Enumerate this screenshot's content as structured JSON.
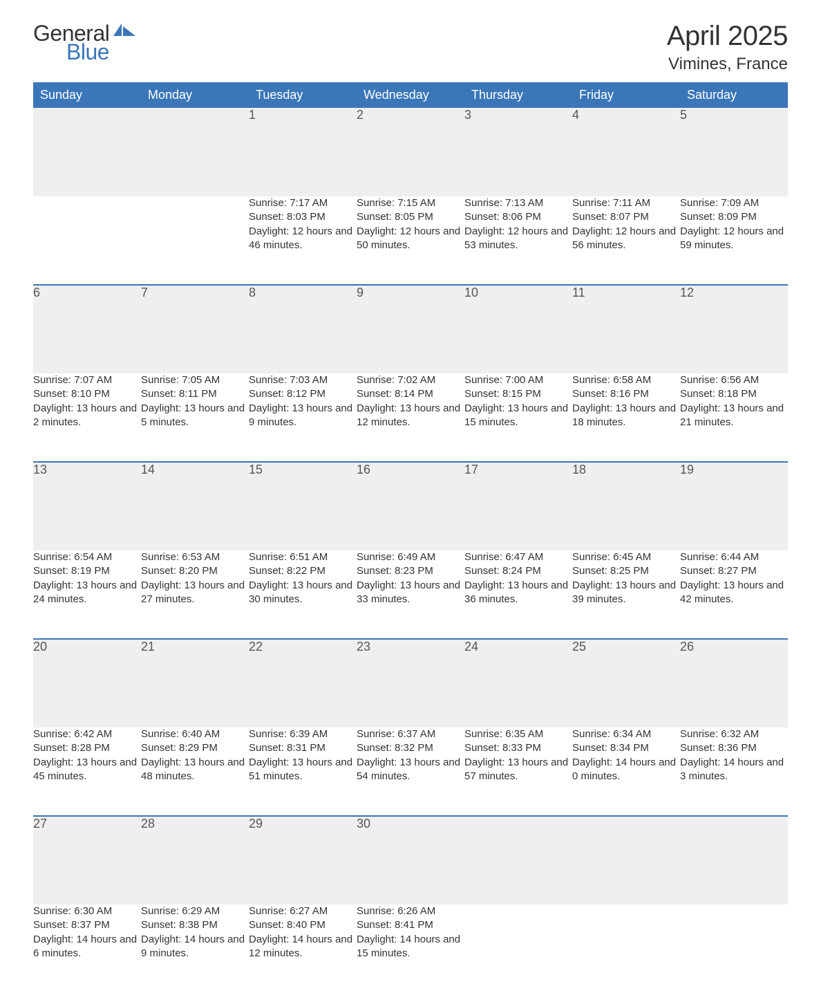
{
  "logo": {
    "general": "General",
    "blue": "Blue",
    "icon_color": "#3a76b8"
  },
  "title": "April 2025",
  "location": "Vimines, France",
  "colors": {
    "header_bg": "#3a76b8",
    "header_text": "#ffffff",
    "daynum_bg": "#efefef",
    "border_top": "#3a76b8",
    "body_text": "#333333",
    "daynum_text": "#555555",
    "page_bg": "#ffffff"
  },
  "typography": {
    "title_fontsize": 40,
    "location_fontsize": 24,
    "header_fontsize": 18,
    "daynum_fontsize": 18,
    "content_fontsize": 15,
    "logo_fontsize": 32
  },
  "weekdays": [
    "Sunday",
    "Monday",
    "Tuesday",
    "Wednesday",
    "Thursday",
    "Friday",
    "Saturday"
  ],
  "weeks": [
    [
      null,
      null,
      {
        "day": "1",
        "sunrise": "Sunrise: 7:17 AM",
        "sunset": "Sunset: 8:03 PM",
        "daylight": "Daylight: 12 hours and 46 minutes."
      },
      {
        "day": "2",
        "sunrise": "Sunrise: 7:15 AM",
        "sunset": "Sunset: 8:05 PM",
        "daylight": "Daylight: 12 hours and 50 minutes."
      },
      {
        "day": "3",
        "sunrise": "Sunrise: 7:13 AM",
        "sunset": "Sunset: 8:06 PM",
        "daylight": "Daylight: 12 hours and 53 minutes."
      },
      {
        "day": "4",
        "sunrise": "Sunrise: 7:11 AM",
        "sunset": "Sunset: 8:07 PM",
        "daylight": "Daylight: 12 hours and 56 minutes."
      },
      {
        "day": "5",
        "sunrise": "Sunrise: 7:09 AM",
        "sunset": "Sunset: 8:09 PM",
        "daylight": "Daylight: 12 hours and 59 minutes."
      }
    ],
    [
      {
        "day": "6",
        "sunrise": "Sunrise: 7:07 AM",
        "sunset": "Sunset: 8:10 PM",
        "daylight": "Daylight: 13 hours and 2 minutes."
      },
      {
        "day": "7",
        "sunrise": "Sunrise: 7:05 AM",
        "sunset": "Sunset: 8:11 PM",
        "daylight": "Daylight: 13 hours and 5 minutes."
      },
      {
        "day": "8",
        "sunrise": "Sunrise: 7:03 AM",
        "sunset": "Sunset: 8:12 PM",
        "daylight": "Daylight: 13 hours and 9 minutes."
      },
      {
        "day": "9",
        "sunrise": "Sunrise: 7:02 AM",
        "sunset": "Sunset: 8:14 PM",
        "daylight": "Daylight: 13 hours and 12 minutes."
      },
      {
        "day": "10",
        "sunrise": "Sunrise: 7:00 AM",
        "sunset": "Sunset: 8:15 PM",
        "daylight": "Daylight: 13 hours and 15 minutes."
      },
      {
        "day": "11",
        "sunrise": "Sunrise: 6:58 AM",
        "sunset": "Sunset: 8:16 PM",
        "daylight": "Daylight: 13 hours and 18 minutes."
      },
      {
        "day": "12",
        "sunrise": "Sunrise: 6:56 AM",
        "sunset": "Sunset: 8:18 PM",
        "daylight": "Daylight: 13 hours and 21 minutes."
      }
    ],
    [
      {
        "day": "13",
        "sunrise": "Sunrise: 6:54 AM",
        "sunset": "Sunset: 8:19 PM",
        "daylight": "Daylight: 13 hours and 24 minutes."
      },
      {
        "day": "14",
        "sunrise": "Sunrise: 6:53 AM",
        "sunset": "Sunset: 8:20 PM",
        "daylight": "Daylight: 13 hours and 27 minutes."
      },
      {
        "day": "15",
        "sunrise": "Sunrise: 6:51 AM",
        "sunset": "Sunset: 8:22 PM",
        "daylight": "Daylight: 13 hours and 30 minutes."
      },
      {
        "day": "16",
        "sunrise": "Sunrise: 6:49 AM",
        "sunset": "Sunset: 8:23 PM",
        "daylight": "Daylight: 13 hours and 33 minutes."
      },
      {
        "day": "17",
        "sunrise": "Sunrise: 6:47 AM",
        "sunset": "Sunset: 8:24 PM",
        "daylight": "Daylight: 13 hours and 36 minutes."
      },
      {
        "day": "18",
        "sunrise": "Sunrise: 6:45 AM",
        "sunset": "Sunset: 8:25 PM",
        "daylight": "Daylight: 13 hours and 39 minutes."
      },
      {
        "day": "19",
        "sunrise": "Sunrise: 6:44 AM",
        "sunset": "Sunset: 8:27 PM",
        "daylight": "Daylight: 13 hours and 42 minutes."
      }
    ],
    [
      {
        "day": "20",
        "sunrise": "Sunrise: 6:42 AM",
        "sunset": "Sunset: 8:28 PM",
        "daylight": "Daylight: 13 hours and 45 minutes."
      },
      {
        "day": "21",
        "sunrise": "Sunrise: 6:40 AM",
        "sunset": "Sunset: 8:29 PM",
        "daylight": "Daylight: 13 hours and 48 minutes."
      },
      {
        "day": "22",
        "sunrise": "Sunrise: 6:39 AM",
        "sunset": "Sunset: 8:31 PM",
        "daylight": "Daylight: 13 hours and 51 minutes."
      },
      {
        "day": "23",
        "sunrise": "Sunrise: 6:37 AM",
        "sunset": "Sunset: 8:32 PM",
        "daylight": "Daylight: 13 hours and 54 minutes."
      },
      {
        "day": "24",
        "sunrise": "Sunrise: 6:35 AM",
        "sunset": "Sunset: 8:33 PM",
        "daylight": "Daylight: 13 hours and 57 minutes."
      },
      {
        "day": "25",
        "sunrise": "Sunrise: 6:34 AM",
        "sunset": "Sunset: 8:34 PM",
        "daylight": "Daylight: 14 hours and 0 minutes."
      },
      {
        "day": "26",
        "sunrise": "Sunrise: 6:32 AM",
        "sunset": "Sunset: 8:36 PM",
        "daylight": "Daylight: 14 hours and 3 minutes."
      }
    ],
    [
      {
        "day": "27",
        "sunrise": "Sunrise: 6:30 AM",
        "sunset": "Sunset: 8:37 PM",
        "daylight": "Daylight: 14 hours and 6 minutes."
      },
      {
        "day": "28",
        "sunrise": "Sunrise: 6:29 AM",
        "sunset": "Sunset: 8:38 PM",
        "daylight": "Daylight: 14 hours and 9 minutes."
      },
      {
        "day": "29",
        "sunrise": "Sunrise: 6:27 AM",
        "sunset": "Sunset: 8:40 PM",
        "daylight": "Daylight: 14 hours and 12 minutes."
      },
      {
        "day": "30",
        "sunrise": "Sunrise: 6:26 AM",
        "sunset": "Sunset: 8:41 PM",
        "daylight": "Daylight: 14 hours and 15 minutes."
      },
      null,
      null,
      null
    ]
  ]
}
